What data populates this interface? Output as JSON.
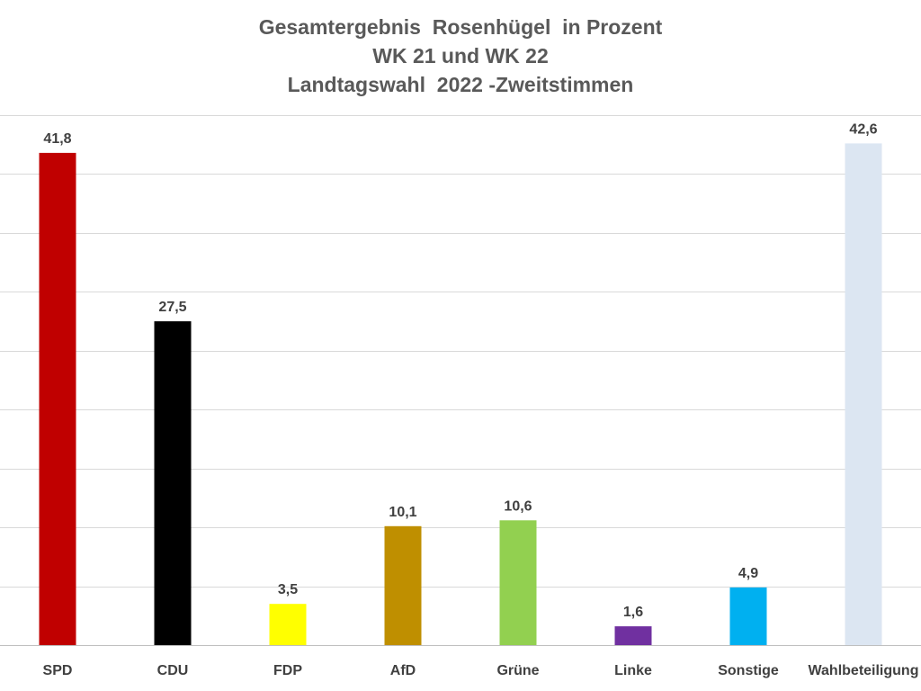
{
  "title": {
    "line1": "Gesamtergebnis  Rosenhügel  in Prozent",
    "line2": "WK 21 und WK 22",
    "line3": "Landtagswahl  2022 -Zweitstimmen"
  },
  "chart_data": {
    "type": "bar",
    "title": "Gesamtergebnis  Rosenhügel  in Prozent WK 21 und WK 22 Landtagswahl  2022 -Zweitstimmen",
    "categories": [
      "SPD",
      "CDU",
      "FDP",
      "AfD",
      "Grüne",
      "Linke",
      "Sonstige",
      "Wahlbeteiligung"
    ],
    "values": [
      41.8,
      27.5,
      3.5,
      10.1,
      10.6,
      1.6,
      4.9,
      42.6
    ],
    "value_labels": [
      "41,8",
      "27,5",
      "3,5",
      "10,1",
      "10,6",
      "1,6",
      "4,9",
      "42,6"
    ],
    "colors": [
      "#c00000",
      "#000000",
      "#ffff00",
      "#bf8f00",
      "#92d050",
      "#7030a0",
      "#00b0f0",
      "#dce6f2"
    ],
    "xlabel": "",
    "ylabel": "",
    "ylim": [
      0,
      45
    ],
    "grid": true,
    "y_tick_step": 5,
    "legend": "none"
  }
}
